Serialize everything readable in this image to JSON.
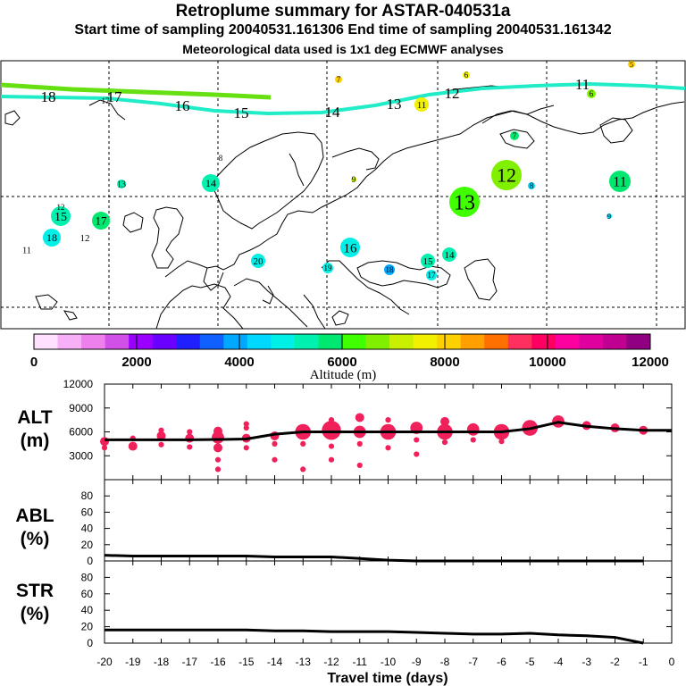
{
  "title": "Retroplume summary for ASTAR-040531a",
  "subtitle_line1": "Start time of sampling 20040531.161306     End time of sampling 20040531.161342",
  "subtitle_line2": "Meteorological data used is 1x1 deg ECMWF analyses",
  "colorbar": {
    "label": "Altitude (m)",
    "ticks": [
      "0",
      "2000",
      "4000",
      "6000",
      "8000",
      "10000",
      "12000"
    ],
    "colors": [
      "#ffe0ff",
      "#f7b0f7",
      "#ee80ee",
      "#d050e8",
      "#9a00ff",
      "#6a00ff",
      "#2020ff",
      "#1060ff",
      "#00a8ff",
      "#00d8ff",
      "#00f0e8",
      "#00f0b0",
      "#00e870",
      "#40ff00",
      "#80f000",
      "#c8f000",
      "#f0f000",
      "#ffd000",
      "#ffa000",
      "#ff7000",
      "#ff3060",
      "#ff0060",
      "#ff00a0",
      "#e000a0",
      "#c00090",
      "#900080"
    ]
  },
  "map": {
    "trajectory_labels": [
      "18",
      "17",
      "16",
      "15",
      "14",
      "13",
      "12",
      "11"
    ],
    "green_track_labels": [
      "17",
      "5"
    ],
    "clusters": [
      {
        "label": "15",
        "alt": 5300
      },
      {
        "label": "17",
        "alt": 5800
      },
      {
        "label": "18",
        "alt": 5000
      },
      {
        "label": "12",
        "alt": 4400
      },
      {
        "label": "11",
        "alt": 3000
      },
      {
        "label": "12",
        "alt": 3000
      },
      {
        "label": "13",
        "alt": 5500
      },
      {
        "label": "14",
        "alt": 5400
      },
      {
        "label": "8",
        "alt": 7000
      },
      {
        "label": "9",
        "alt": 7000
      },
      {
        "label": "20",
        "alt": 4800
      },
      {
        "label": "19",
        "alt": 4800
      },
      {
        "label": "16",
        "alt": 4800
      },
      {
        "label": "18",
        "alt": 4000
      },
      {
        "label": "15",
        "alt": 5300
      },
      {
        "label": "14",
        "alt": 5400
      },
      {
        "label": "17",
        "alt": 4700
      },
      {
        "label": "13",
        "alt": 6200
      },
      {
        "label": "12",
        "alt": 6500
      },
      {
        "label": "8",
        "alt": 4500
      },
      {
        "label": "11",
        "alt": 5600
      },
      {
        "label": "9",
        "alt": 4500
      },
      {
        "label": "7",
        "alt": 5900
      },
      {
        "label": "11",
        "alt": 7800
      },
      {
        "label": "7",
        "alt": 8000
      },
      {
        "label": "6",
        "alt": 7500
      },
      {
        "label": "6",
        "alt": 6800
      },
      {
        "label": "5",
        "alt": 8000
      }
    ]
  },
  "chart_data": [
    {
      "type": "scatter",
      "panel": "ALT",
      "ylabel_line1": "ALT",
      "ylabel_line2": "(m)",
      "ylim": [
        0,
        12000
      ],
      "yticks": [
        "12000",
        "9000",
        "6000",
        "3000"
      ],
      "xlim": [
        -20,
        0
      ],
      "mean_line": {
        "x": [
          -20,
          -19,
          -18,
          -17,
          -16,
          -15,
          -14,
          -13,
          -12,
          -11,
          -10,
          -9,
          -8,
          -7,
          -6,
          -5,
          -4,
          -3,
          -2,
          -1,
          0
        ],
        "y": [
          5000,
          5000,
          5000,
          5000,
          5050,
          5100,
          5700,
          6000,
          6000,
          6000,
          6000,
          6000,
          6000,
          6000,
          6000,
          6400,
          7200,
          6700,
          6400,
          6200,
          6200
        ]
      },
      "points": [
        {
          "x": -20.0,
          "y": 4800,
          "w": 2
        },
        {
          "x": -20.0,
          "y": 4000,
          "w": 1
        },
        {
          "x": -19.0,
          "y": 4200,
          "w": 2
        },
        {
          "x": -19.0,
          "y": 5200,
          "w": 1
        },
        {
          "x": -18.0,
          "y": 5500,
          "w": 2
        },
        {
          "x": -18.0,
          "y": 4400,
          "w": 1
        },
        {
          "x": -18.0,
          "y": 6200,
          "w": 1
        },
        {
          "x": -17.0,
          "y": 5200,
          "w": 2
        },
        {
          "x": -17.0,
          "y": 4100,
          "w": 1
        },
        {
          "x": -17.0,
          "y": 6000,
          "w": 1
        },
        {
          "x": -16.0,
          "y": 5300,
          "w": 3
        },
        {
          "x": -16.0,
          "y": 4000,
          "w": 2
        },
        {
          "x": -16.0,
          "y": 6100,
          "w": 2
        },
        {
          "x": -16.0,
          "y": 2500,
          "w": 1
        },
        {
          "x": -16.0,
          "y": 1300,
          "w": 1
        },
        {
          "x": -15.0,
          "y": 5200,
          "w": 2
        },
        {
          "x": -15.0,
          "y": 6500,
          "w": 1
        },
        {
          "x": -15.0,
          "y": 4000,
          "w": 1
        },
        {
          "x": -15.0,
          "y": 7000,
          "w": 1
        },
        {
          "x": -14.0,
          "y": 5500,
          "w": 2
        },
        {
          "x": -14.0,
          "y": 4500,
          "w": 1
        },
        {
          "x": -14.0,
          "y": 2500,
          "w": 1
        },
        {
          "x": -13.0,
          "y": 6000,
          "w": 4
        },
        {
          "x": -13.0,
          "y": 4500,
          "w": 1
        },
        {
          "x": -13.0,
          "y": 1300,
          "w": 1
        },
        {
          "x": -12.0,
          "y": 6200,
          "w": 5
        },
        {
          "x": -12.0,
          "y": 7500,
          "w": 1
        },
        {
          "x": -12.0,
          "y": 4200,
          "w": 1
        },
        {
          "x": -12.0,
          "y": 2500,
          "w": 1
        },
        {
          "x": -11.0,
          "y": 7800,
          "w": 2
        },
        {
          "x": -11.0,
          "y": 6000,
          "w": 3
        },
        {
          "x": -11.0,
          "y": 4500,
          "w": 1
        },
        {
          "x": -11.0,
          "y": 1800,
          "w": 1
        },
        {
          "x": -10.0,
          "y": 6000,
          "w": 4
        },
        {
          "x": -10.0,
          "y": 7500,
          "w": 1
        },
        {
          "x": -10.0,
          "y": 4000,
          "w": 1
        },
        {
          "x": -9.0,
          "y": 6500,
          "w": 3
        },
        {
          "x": -9.0,
          "y": 5000,
          "w": 1
        },
        {
          "x": -9.0,
          "y": 3200,
          "w": 1
        },
        {
          "x": -8.0,
          "y": 6000,
          "w": 4
        },
        {
          "x": -8.0,
          "y": 7300,
          "w": 2
        },
        {
          "x": -8.0,
          "y": 4700,
          "w": 1
        },
        {
          "x": -7.0,
          "y": 6300,
          "w": 3
        },
        {
          "x": -7.0,
          "y": 5000,
          "w": 1
        },
        {
          "x": -6.0,
          "y": 6000,
          "w": 4
        },
        {
          "x": -6.0,
          "y": 4800,
          "w": 1
        },
        {
          "x": -5.0,
          "y": 6500,
          "w": 4
        },
        {
          "x": -4.0,
          "y": 7300,
          "w": 3
        },
        {
          "x": -3.0,
          "y": 6800,
          "w": 2
        },
        {
          "x": -2.0,
          "y": 6500,
          "w": 2
        },
        {
          "x": -1.0,
          "y": 6200,
          "w": 2
        }
      ]
    },
    {
      "type": "line",
      "panel": "ABL",
      "ylabel_line1": "ABL",
      "ylabel_line2": "(%)",
      "ylim": [
        0,
        100
      ],
      "yticks": [
        "80",
        "60",
        "40",
        "20",
        "0"
      ],
      "x": [
        -20,
        -19,
        -18,
        -17,
        -16,
        -15,
        -14,
        -13,
        -12,
        -11,
        -10,
        -9,
        -8,
        -7,
        -6,
        -5,
        -4,
        -3,
        -2,
        -1
      ],
      "values": [
        7,
        6,
        6,
        6,
        6,
        6,
        5,
        5,
        5,
        3,
        1,
        0,
        0,
        0,
        0,
        0,
        0,
        0,
        0,
        0
      ]
    },
    {
      "type": "line",
      "panel": "STR",
      "ylabel_line1": "STR",
      "ylabel_line2": "(%)",
      "ylim": [
        0,
        100
      ],
      "yticks": [
        "80",
        "60",
        "40",
        "20",
        "0"
      ],
      "x": [
        -20,
        -19,
        -18,
        -17,
        -16,
        -15,
        -14,
        -13,
        -12,
        -11,
        -10,
        -9,
        -8,
        -7,
        -6,
        -5,
        -4,
        -3,
        -2,
        -1
      ],
      "values": [
        16,
        16,
        16,
        16,
        16,
        16,
        15,
        15,
        14,
        14,
        14,
        13,
        12,
        11,
        11,
        12,
        10,
        9,
        7,
        0
      ]
    }
  ],
  "xaxis": {
    "label": "Travel time (days)",
    "ticks": [
      "-20",
      "-19",
      "-18",
      "-17",
      "-16",
      "-15",
      "-14",
      "-13",
      "-12",
      "-11",
      "-10",
      "-9",
      "-8",
      "-7",
      "-6",
      "-5",
      "-4",
      "-3",
      "-2",
      "-1",
      "0"
    ]
  }
}
